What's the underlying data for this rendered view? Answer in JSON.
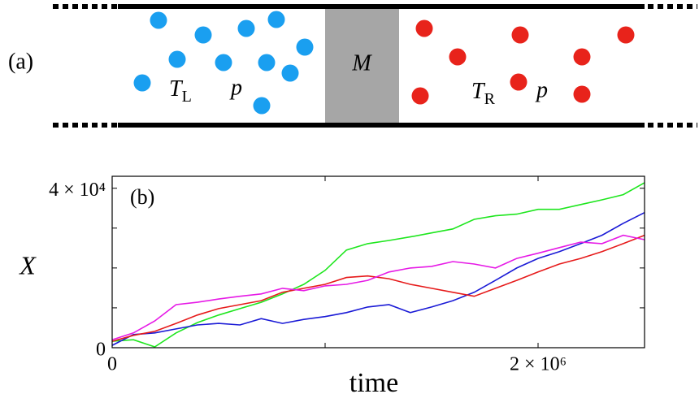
{
  "diagram": {
    "label": "(a)",
    "piston": "M",
    "left": {
      "temperature": {
        "symbol": "T",
        "sub": "L"
      },
      "pressure": "p"
    },
    "right": {
      "temperature": {
        "symbol": "T",
        "sub": "R"
      },
      "pressure": "p"
    }
  },
  "chart_data": {
    "type": "line",
    "panel_label": "(b)",
    "x_label": "time",
    "y_label": "X",
    "xlim": [
      0,
      2500000
    ],
    "ylim": [
      0,
      43000
    ],
    "xticks": [
      0,
      {
        "value": 2000000,
        "label": "2 × 10⁶"
      }
    ],
    "xminor": [
      1000000
    ],
    "yticks": [
      0,
      {
        "value": 40000,
        "label": "4 × 10⁴"
      }
    ],
    "yminor": [
      10000,
      20000,
      30000
    ],
    "x": [
      0,
      100000,
      200000,
      300000,
      400000,
      500000,
      600000,
      700000,
      800000,
      900000,
      1000000,
      1100000,
      1200000,
      1300000,
      1400000,
      1500000,
      1600000,
      1700000,
      1800000,
      1900000,
      2000000,
      2100000,
      2200000,
      2300000,
      2400000,
      2500000
    ],
    "series": [
      {
        "color": "#1ee61e",
        "values": [
          1600,
          2000,
          200,
          3700,
          6300,
          8200,
          9800,
          11400,
          13500,
          15900,
          19400,
          24500,
          26100,
          26900,
          27800,
          28800,
          29800,
          32200,
          33100,
          33500,
          34700,
          34700,
          35900,
          37100,
          38400,
          41400
        ]
      },
      {
        "color": "#1a1ad6",
        "values": [
          600,
          3300,
          3700,
          4700,
          5700,
          6100,
          5700,
          7300,
          6100,
          7100,
          7800,
          8800,
          10200,
          10800,
          8800,
          10200,
          11800,
          13900,
          16900,
          20000,
          22400,
          24100,
          26100,
          28200,
          31200,
          33900
        ]
      },
      {
        "color": "#e61a1a",
        "values": [
          1600,
          3100,
          4100,
          6100,
          8200,
          9800,
          10800,
          11800,
          13900,
          14900,
          15900,
          17600,
          18000,
          17300,
          15900,
          14900,
          13900,
          12900,
          14900,
          16900,
          19000,
          21000,
          22400,
          24100,
          26100,
          28200
        ]
      },
      {
        "color": "#e61ae6",
        "values": [
          2000,
          3700,
          6700,
          10800,
          11400,
          12200,
          12900,
          13500,
          14900,
          14300,
          15500,
          15900,
          16900,
          19000,
          20000,
          20400,
          21600,
          21000,
          20000,
          22400,
          23700,
          25100,
          26500,
          26100,
          28200,
          27100
        ]
      }
    ]
  }
}
